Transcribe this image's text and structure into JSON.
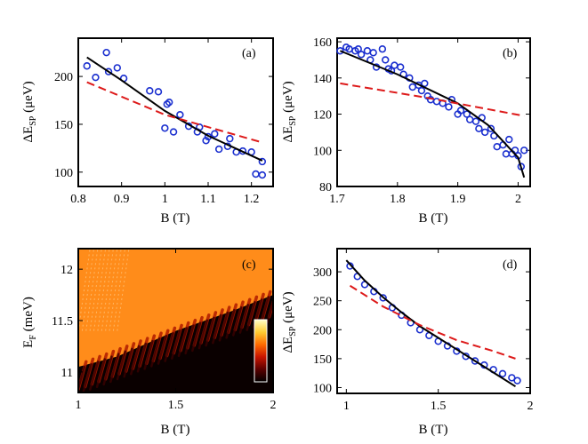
{
  "chart_data": [
    {
      "panel": "(a)",
      "type": "scatter",
      "xlabel": "B (T)",
      "ylabel": "ΔE",
      "ylabel_sub": "SP",
      "ylabel_unit": " (μeV)",
      "xlim": [
        0.8,
        1.25
      ],
      "ylim": [
        85,
        240
      ],
      "xticks": [
        0.8,
        0.9,
        1,
        1.1,
        1.2
      ],
      "xtick_labels": [
        "0.8",
        "0.9",
        "1",
        "1.1",
        "1.2"
      ],
      "yticks": [
        100,
        150,
        200
      ],
      "ytick_labels": [
        "100",
        "150",
        "200"
      ],
      "series": [
        {
          "name": "data",
          "style": "circles",
          "color": "#1a2fcf",
          "x": [
            0.82,
            0.84,
            0.865,
            0.87,
            0.89,
            0.905,
            0.965,
            0.985,
            1.0,
            1.005,
            1.01,
            1.02,
            1.035,
            1.055,
            1.075,
            1.08,
            1.095,
            1.1,
            1.115,
            1.125,
            1.145,
            1.15,
            1.165,
            1.18,
            1.2,
            1.21,
            1.225,
            1.225
          ],
          "y": [
            211,
            199,
            225,
            205,
            209,
            198,
            185,
            184,
            146,
            171,
            173,
            142,
            160,
            148,
            142,
            147,
            133,
            137,
            140,
            124,
            127,
            135,
            121,
            122,
            121,
            98,
            97,
            111
          ]
        },
        {
          "name": "black fit",
          "style": "solid",
          "color": "#000000",
          "x": [
            0.82,
            0.9,
            1.0,
            1.1,
            1.225
          ],
          "y": [
            220,
            196,
            164,
            138,
            112
          ]
        },
        {
          "name": "red fit",
          "style": "dashed",
          "color": "#dd1a1a",
          "x": [
            0.82,
            1.0,
            1.225
          ],
          "y": [
            194,
            160,
            131
          ]
        }
      ]
    },
    {
      "panel": "(b)",
      "type": "scatter",
      "xlabel": "B (T)",
      "ylabel": "ΔE",
      "ylabel_sub": "SP",
      "ylabel_unit": " (μeV)",
      "xlim": [
        1.7,
        2.02
      ],
      "ylim": [
        80,
        162
      ],
      "xticks": [
        1.7,
        1.8,
        1.9,
        2
      ],
      "xtick_labels": [
        "1.7",
        "1.8",
        "1.9",
        "2"
      ],
      "yticks": [
        80,
        100,
        120,
        140,
        160
      ],
      "ytick_labels": [
        "80",
        "100",
        "120",
        "140",
        "160"
      ],
      "series": [
        {
          "name": "data",
          "style": "circles",
          "color": "#1a2fcf",
          "x": [
            1.705,
            1.715,
            1.72,
            1.73,
            1.735,
            1.74,
            1.75,
            1.755,
            1.76,
            1.765,
            1.775,
            1.78,
            1.785,
            1.79,
            1.795,
            1.805,
            1.81,
            1.82,
            1.825,
            1.835,
            1.84,
            1.845,
            1.85,
            1.855,
            1.865,
            1.875,
            1.885,
            1.89,
            1.9,
            1.905,
            1.915,
            1.92,
            1.93,
            1.935,
            1.94,
            1.945,
            1.955,
            1.96,
            1.965,
            1.975,
            1.98,
            1.985,
            1.99,
            1.995,
            2.0,
            2.005,
            2.01
          ],
          "y": [
            155,
            157,
            156,
            155,
            156,
            153,
            155,
            150,
            154,
            146,
            156,
            150,
            145,
            144,
            147,
            146,
            142,
            140,
            135,
            136,
            133,
            137,
            130,
            128,
            127,
            126,
            124,
            128,
            120,
            122,
            120,
            117,
            116,
            112,
            118,
            110,
            112,
            108,
            102,
            103,
            98,
            106,
            98,
            100,
            97,
            91,
            100
          ]
        },
        {
          "name": "black fit",
          "style": "solid",
          "color": "#000000",
          "x": [
            1.705,
            1.8,
            1.9,
            1.95,
            2.0,
            2.01
          ],
          "y": [
            155,
            142,
            126,
            114,
            96,
            85
          ]
        },
        {
          "name": "red fit",
          "style": "dashed",
          "color": "#dd1a1a",
          "x": [
            1.705,
            1.85,
            2.01
          ],
          "y": [
            137,
            129,
            119
          ]
        }
      ]
    },
    {
      "panel": "(c)",
      "type": "heatmap",
      "xlabel": "B (T)",
      "ylabel": "E",
      "ylabel_sub": "F",
      "ylabel_unit": " (meV)",
      "xlim": [
        1,
        2
      ],
      "ylim": [
        10.8,
        12.2
      ],
      "xticks": [
        1,
        1.5,
        2
      ],
      "xtick_labels": [
        "1",
        "1.5",
        "2"
      ],
      "yticks": [
        11,
        11.5,
        12
      ],
      "ytick_labels": [
        "11",
        "11.5",
        "12"
      ],
      "colormap": [
        "#000000",
        "#5a0000",
        "#c81400",
        "#ff6a00",
        "#ffcc33",
        "#ffffc8"
      ],
      "background_color": "#ff8c1a",
      "dark_region_color": "#0a0000",
      "fringe_color": "#b01a00"
    },
    {
      "panel": "(d)",
      "type": "scatter",
      "xlabel": "B (T)",
      "ylabel": "ΔE",
      "ylabel_sub": "SP",
      "ylabel_unit": " (μeV)",
      "xlim": [
        0.95,
        2.0
      ],
      "ylim": [
        90,
        340
      ],
      "xticks": [
        1,
        1.5,
        2
      ],
      "xtick_labels": [
        "1",
        "1.5",
        "2"
      ],
      "yticks": [
        100,
        150,
        200,
        250,
        300
      ],
      "ytick_labels": [
        "100",
        "150",
        "200",
        "250",
        "300"
      ],
      "series": [
        {
          "name": "data",
          "style": "circles",
          "color": "#1a2fcf",
          "x": [
            1.02,
            1.06,
            1.1,
            1.15,
            1.2,
            1.25,
            1.3,
            1.35,
            1.4,
            1.45,
            1.5,
            1.55,
            1.6,
            1.65,
            1.7,
            1.75,
            1.8,
            1.85,
            1.9,
            1.93
          ],
          "y": [
            310,
            292,
            278,
            266,
            255,
            238,
            225,
            212,
            200,
            190,
            180,
            172,
            163,
            154,
            146,
            139,
            131,
            124,
            117,
            112
          ]
        },
        {
          "name": "black fit",
          "style": "solid",
          "color": "#000000",
          "x": [
            1.0,
            1.1,
            1.2,
            1.3,
            1.4,
            1.5,
            1.6,
            1.7,
            1.8,
            1.92
          ],
          "y": [
            320,
            285,
            256,
            230,
            206,
            186,
            166,
            146,
            126,
            102
          ]
        },
        {
          "name": "red fit",
          "style": "dashed",
          "color": "#dd1a1a",
          "x": [
            1.02,
            1.2,
            1.4,
            1.6,
            1.8,
            1.92
          ],
          "y": [
            276,
            240,
            208,
            182,
            163,
            150
          ]
        }
      ]
    }
  ]
}
